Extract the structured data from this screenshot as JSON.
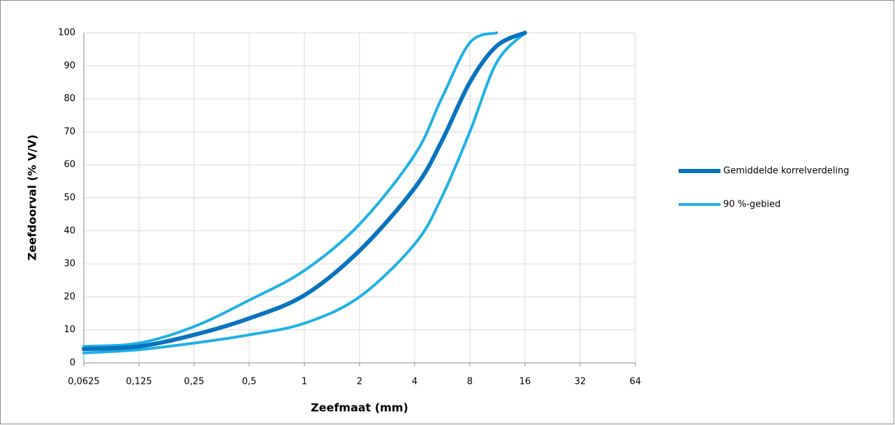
{
  "chart_data": {
    "type": "line",
    "x_label": "Zeefmaat (mm)",
    "y_label": "Zeefdoorval (% V/V)",
    "x": [
      0.0625,
      0.125,
      0.25,
      0.5,
      1,
      2,
      4,
      5.6,
      8,
      11.2,
      16
    ],
    "series": [
      {
        "name": "Gemiddelde korrelverdeling",
        "color": "#0a73be",
        "values": [
          4.2,
          5,
          8.5,
          13.5,
          20.5,
          34,
          53,
          67,
          85,
          96,
          100
        ]
      },
      {
        "name": "90 %-gebied",
        "color": "#1eb1e6",
        "values": [
          3,
          4,
          6,
          8.5,
          12,
          20,
          36,
          50,
          70,
          91,
          100
        ]
      },
      {
        "color": "#1eb1e6",
        "values": [
          5,
          6,
          11,
          19,
          28,
          42,
          63,
          80,
          97,
          100,
          null
        ]
      }
    ],
    "xlim": [
      0.0625,
      64
    ],
    "xlog": true,
    "xticks": [
      {
        "value": 0.0625,
        "label": "0,0625"
      },
      {
        "value": 0.125,
        "label": "0,125"
      },
      {
        "value": 0.25,
        "label": "0,25"
      },
      {
        "value": 0.5,
        "label": "0,5"
      },
      1,
      2,
      4,
      8,
      16,
      32,
      64
    ],
    "ylim": [
      0,
      100
    ],
    "yticks": [
      0,
      10,
      20,
      30,
      40,
      50,
      60,
      70,
      80,
      90,
      100
    ],
    "grid": true,
    "legend": "right"
  }
}
